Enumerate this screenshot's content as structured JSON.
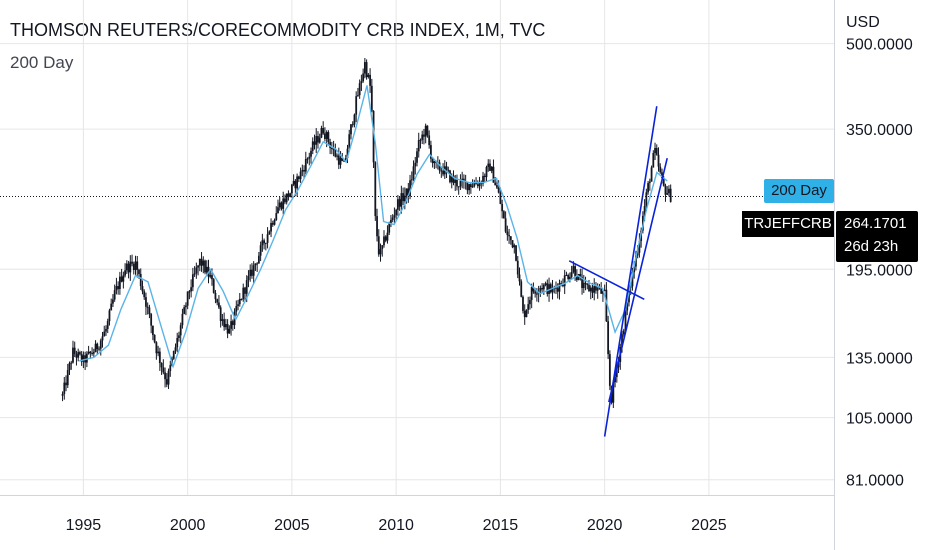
{
  "header": {
    "title": "THOMSON REUTERS/CORECOMMODITY CRB INDEX, 1M, TVC",
    "indicator": "200 Day",
    "currency": "USD"
  },
  "badges": {
    "indicator_label": "200 Day",
    "symbol": "TRJEFFCRB",
    "last_price": "264.1701",
    "countdown": "26d 23h"
  },
  "colors": {
    "candles": "#131722",
    "moving_average": "#5ab4e8",
    "trendlines": "#0a22d8",
    "grid": "#e6e6e6",
    "badge_indicator": "#2fb1e8",
    "badge_price": "#000000"
  },
  "chart_data": {
    "type": "candlestick",
    "y_scale": "log",
    "ylim": [
      76,
      600
    ],
    "xlim": [
      1991.0,
      2031.0
    ],
    "x_ticks": [
      "1995",
      "2000",
      "2005",
      "2010",
      "2015",
      "2020",
      "2025"
    ],
    "y_ticks": [
      "500.0000",
      "350.0000",
      "195.0000",
      "135.0000",
      "105.0000",
      "81.0000"
    ],
    "last_price": 264.1701,
    "price_path": [
      [
        1994.0,
        115
      ],
      [
        1994.5,
        138
      ],
      [
        1995.0,
        133
      ],
      [
        1995.6,
        140
      ],
      [
        1996.1,
        152
      ],
      [
        1996.5,
        176
      ],
      [
        1997.0,
        196
      ],
      [
        1997.5,
        200
      ],
      [
        1998.0,
        170
      ],
      [
        1998.5,
        140
      ],
      [
        1999.0,
        122
      ],
      [
        1999.6,
        150
      ],
      [
        2000.1,
        180
      ],
      [
        2000.6,
        202
      ],
      [
        2001.1,
        188
      ],
      [
        2001.6,
        160
      ],
      [
        2002.0,
        150
      ],
      [
        2002.6,
        175
      ],
      [
        2003.2,
        198
      ],
      [
        2003.8,
        225
      ],
      [
        2004.3,
        252
      ],
      [
        2004.9,
        268
      ],
      [
        2005.4,
        290
      ],
      [
        2006.0,
        325
      ],
      [
        2006.5,
        350
      ],
      [
        2007.0,
        318
      ],
      [
        2007.5,
        300
      ],
      [
        2008.0,
        380
      ],
      [
        2008.5,
        460
      ],
      [
        2008.8,
        410
      ],
      [
        2009.0,
        240
      ],
      [
        2009.2,
        205
      ],
      [
        2009.6,
        230
      ],
      [
        2010.1,
        258
      ],
      [
        2010.6,
        270
      ],
      [
        2011.1,
        330
      ],
      [
        2011.4,
        350
      ],
      [
        2011.8,
        300
      ],
      [
        2012.3,
        295
      ],
      [
        2012.8,
        280
      ],
      [
        2013.4,
        278
      ],
      [
        2014.0,
        280
      ],
      [
        2014.5,
        300
      ],
      [
        2014.9,
        268
      ],
      [
        2015.3,
        225
      ],
      [
        2015.7,
        215
      ],
      [
        2016.1,
        160
      ],
      [
        2016.5,
        178
      ],
      [
        2017.0,
        182
      ],
      [
        2017.5,
        178
      ],
      [
        2018.0,
        186
      ],
      [
        2018.5,
        196
      ],
      [
        2019.0,
        180
      ],
      [
        2019.6,
        180
      ],
      [
        2020.0,
        175
      ],
      [
        2020.3,
        112
      ],
      [
        2020.8,
        145
      ],
      [
        2021.2,
        180
      ],
      [
        2021.6,
        215
      ],
      [
        2022.0,
        265
      ],
      [
        2022.4,
        320
      ],
      [
        2022.8,
        275
      ],
      [
        2023.2,
        264
      ]
    ],
    "moving_average_path": [
      [
        1994.8,
        133
      ],
      [
        1995.5,
        135
      ],
      [
        1996.2,
        142
      ],
      [
        1996.8,
        165
      ],
      [
        1997.5,
        190
      ],
      [
        1998.1,
        185
      ],
      [
        1998.7,
        155
      ],
      [
        1999.3,
        130
      ],
      [
        1999.9,
        150
      ],
      [
        2000.5,
        180
      ],
      [
        2001.1,
        195
      ],
      [
        2001.7,
        178
      ],
      [
        2002.3,
        158
      ],
      [
        2002.9,
        175
      ],
      [
        2003.5,
        195
      ],
      [
        2004.1,
        220
      ],
      [
        2004.7,
        250
      ],
      [
        2005.3,
        272
      ],
      [
        2005.9,
        300
      ],
      [
        2006.5,
        332
      ],
      [
        2007.1,
        322
      ],
      [
        2007.6,
        305
      ],
      [
        2008.1,
        355
      ],
      [
        2008.6,
        420
      ],
      [
        2009.0,
        330
      ],
      [
        2009.4,
        238
      ],
      [
        2009.9,
        235
      ],
      [
        2010.4,
        255
      ],
      [
        2011.0,
        290
      ],
      [
        2011.6,
        315
      ],
      [
        2012.2,
        298
      ],
      [
        2012.8,
        285
      ],
      [
        2013.5,
        280
      ],
      [
        2014.2,
        280
      ],
      [
        2014.8,
        285
      ],
      [
        2015.3,
        255
      ],
      [
        2015.8,
        222
      ],
      [
        2016.3,
        185
      ],
      [
        2016.9,
        176
      ],
      [
        2017.5,
        180
      ],
      [
        2018.1,
        184
      ],
      [
        2018.7,
        190
      ],
      [
        2019.3,
        184
      ],
      [
        2019.9,
        180
      ],
      [
        2020.5,
        150
      ],
      [
        2021.0,
        165
      ],
      [
        2021.5,
        205
      ],
      [
        2022.0,
        250
      ],
      [
        2022.5,
        292
      ],
      [
        2023.0,
        282
      ]
    ],
    "trendlines": [
      {
        "from": [
          2018.3,
          202
        ],
        "to": [
          2021.9,
          172
        ]
      },
      {
        "from": [
          2020.0,
          97
        ],
        "to": [
          2022.5,
          385
        ]
      },
      {
        "from": [
          2020.2,
          112
        ],
        "to": [
          2023.0,
          310
        ]
      }
    ]
  }
}
